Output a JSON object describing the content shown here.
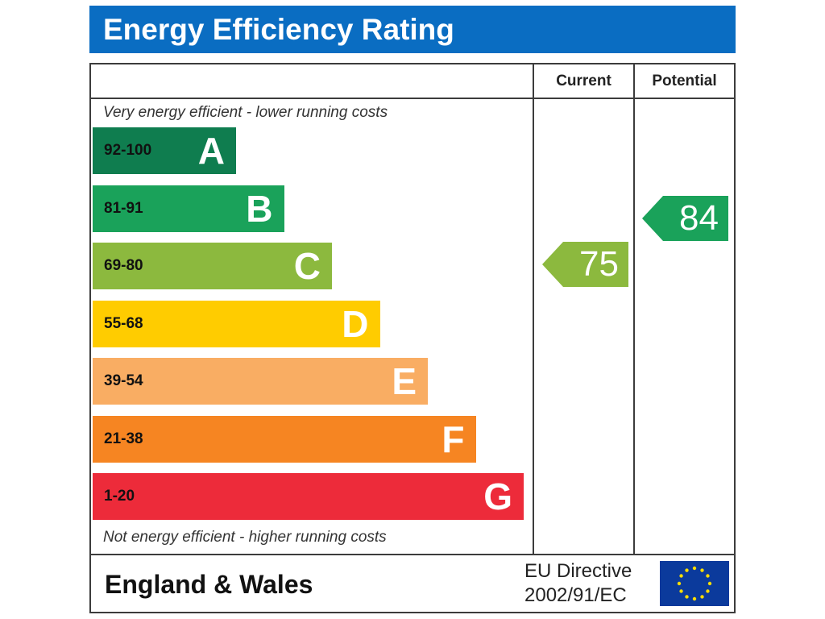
{
  "chart_data": {
    "type": "table",
    "title": "Energy Efficiency Rating",
    "columns": [
      "Current",
      "Potential"
    ],
    "top_note": "Very energy efficient - lower running costs",
    "bottom_note": "Not energy efficient - higher running costs",
    "bands": [
      {
        "letter": "A",
        "range": "92-100",
        "color": "#0f7d4f"
      },
      {
        "letter": "B",
        "range": "81-91",
        "color": "#1aa25a"
      },
      {
        "letter": "C",
        "range": "69-80",
        "color": "#8cb93e"
      },
      {
        "letter": "D",
        "range": "55-68",
        "color": "#ffcc00"
      },
      {
        "letter": "E",
        "range": "39-54",
        "color": "#f9ad63"
      },
      {
        "letter": "F",
        "range": "21-38",
        "color": "#f68522"
      },
      {
        "letter": "G",
        "range": "1-20",
        "color": "#ed2b3a"
      }
    ],
    "current": {
      "value": 75,
      "band": "C",
      "color": "#8cb93e"
    },
    "potential": {
      "value": 84,
      "band": "B",
      "color": "#1aa25a"
    }
  },
  "footer": {
    "country": "England & Wales",
    "directive_line1": "EU Directive",
    "directive_line2": "2002/91/EC"
  },
  "colors": {
    "title_bar": "#0a6dc2",
    "eu_flag_blue": "#0b3a9c",
    "eu_flag_star": "#ffdd00"
  }
}
